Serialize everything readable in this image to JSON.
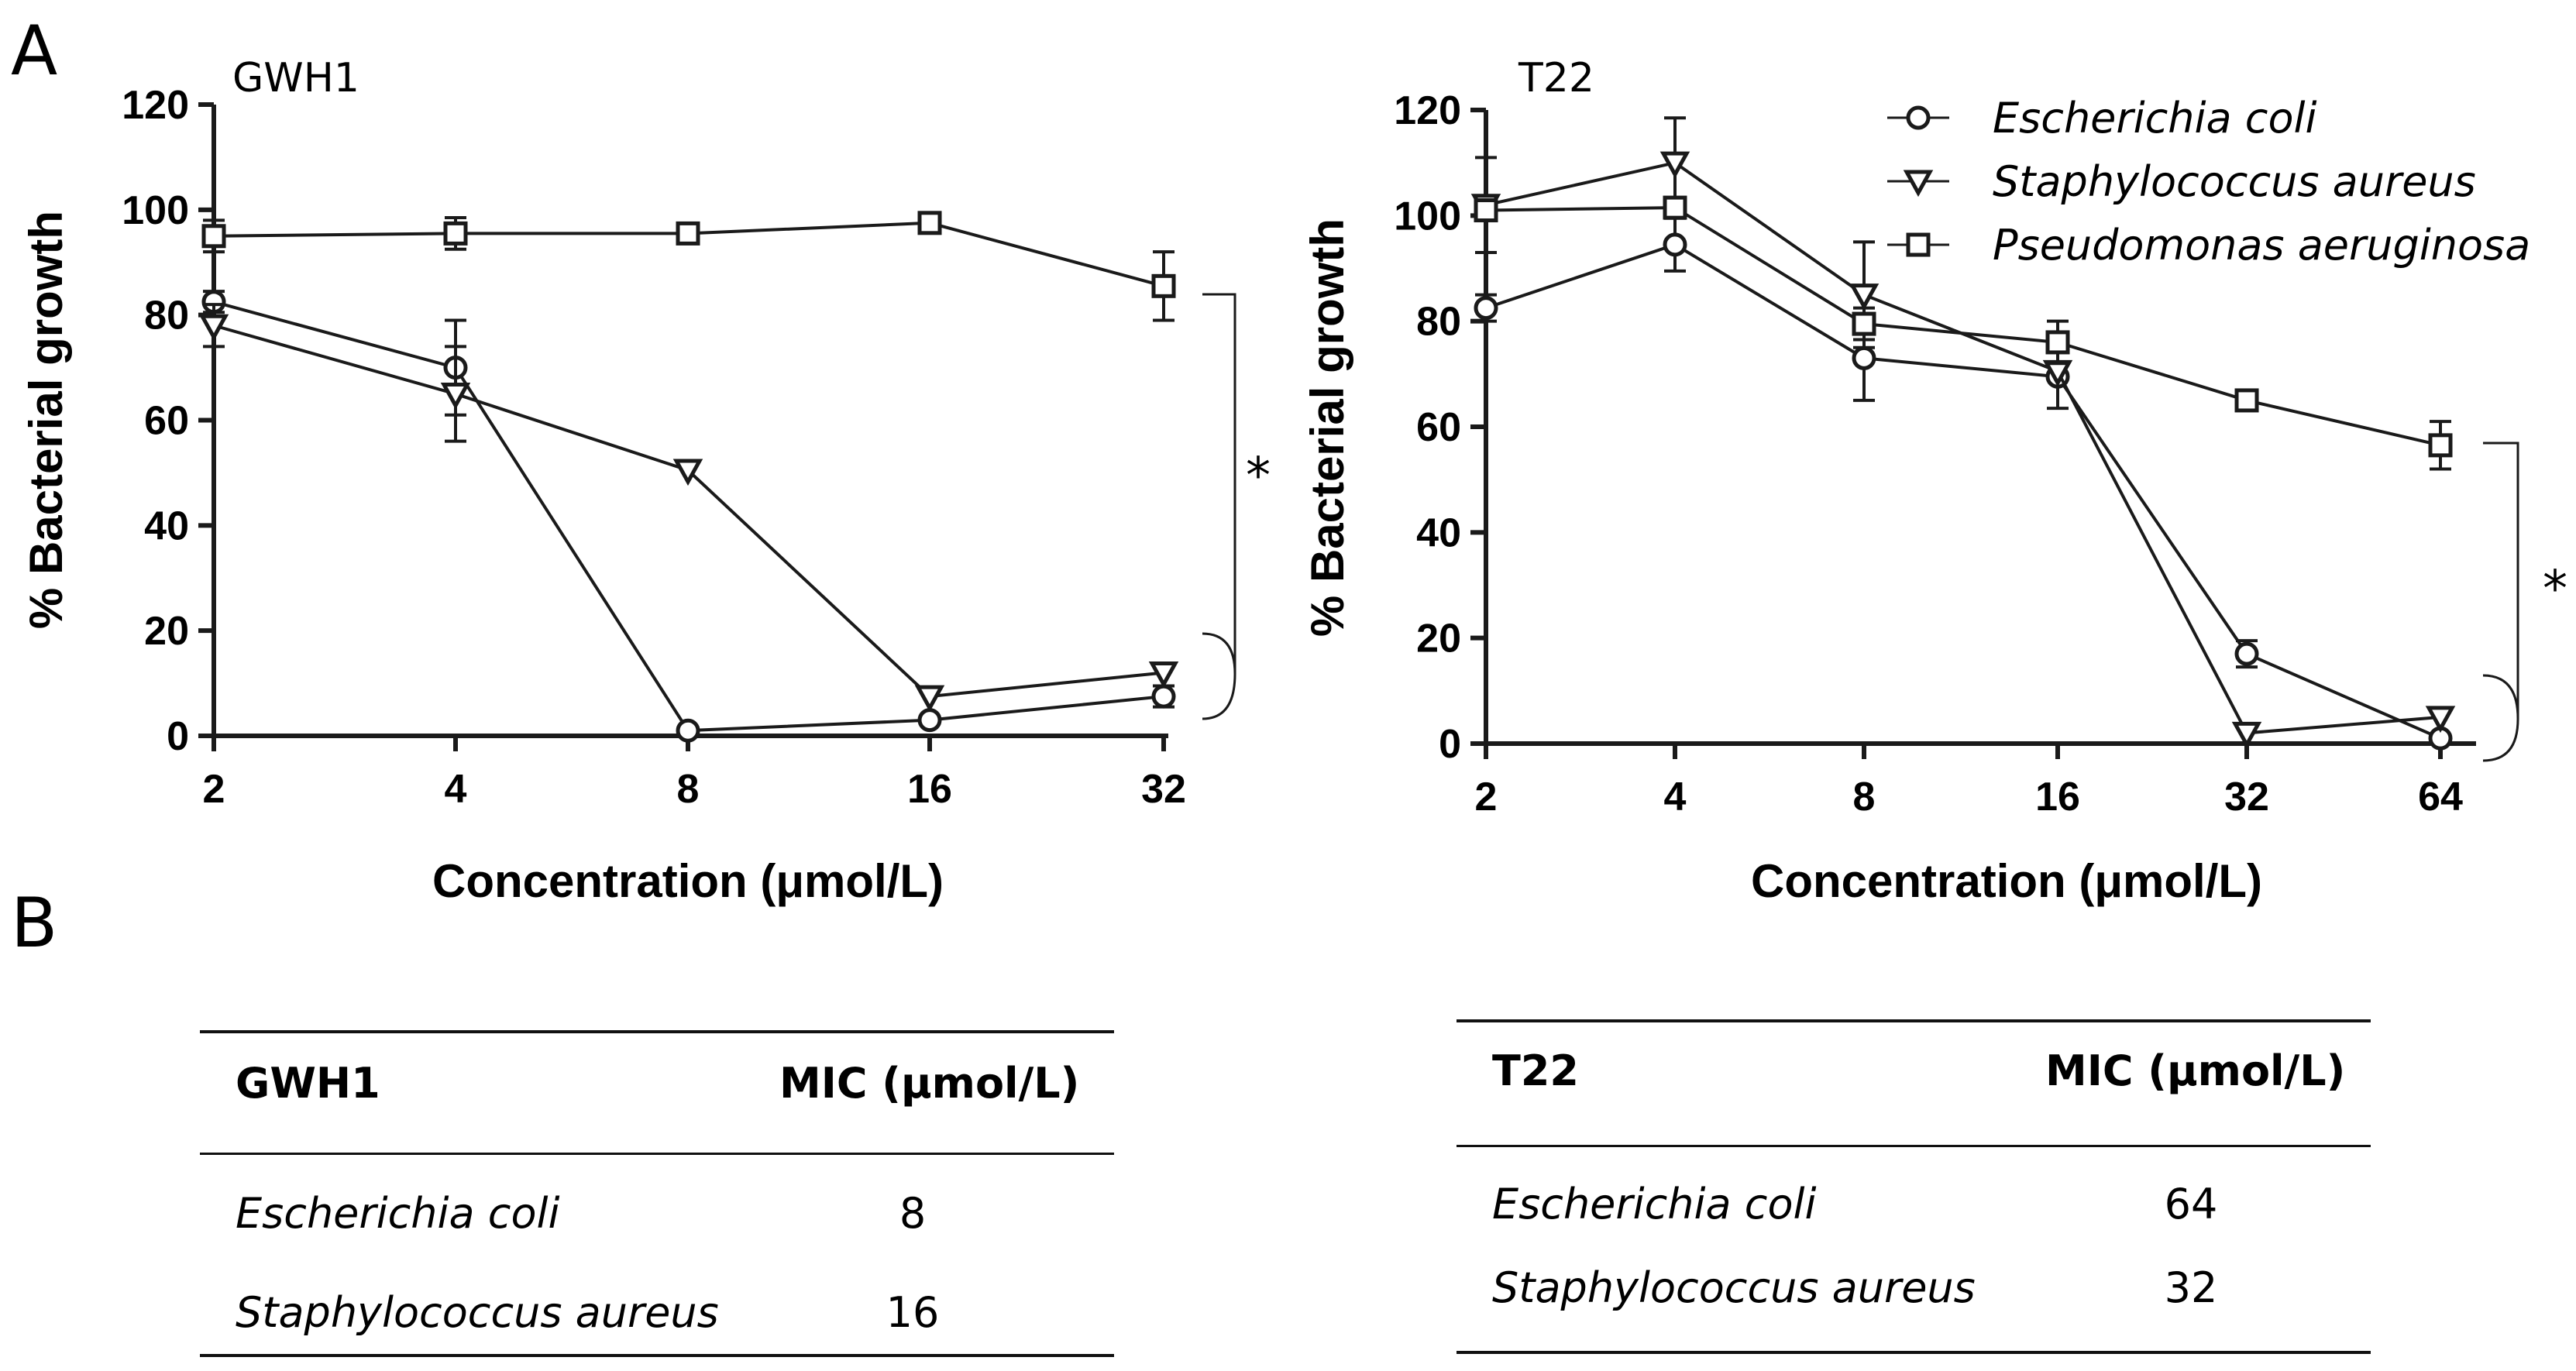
{
  "panels": {
    "a": "A",
    "b": "B"
  },
  "chart_data": [
    {
      "type": "line",
      "title": "GWH1",
      "xlabel": "Concentration (μmol/L)",
      "ylabel": "% Bacterial growth",
      "categories": [
        "2",
        "4",
        "8",
        "16",
        "32"
      ],
      "ylim": [
        0,
        120
      ],
      "yticks": [
        0,
        20,
        40,
        60,
        80,
        100,
        120
      ],
      "series": [
        {
          "name": "Escherichia coli",
          "marker": "circle",
          "values": [
            82.5,
            70,
            1,
            3,
            7.5
          ],
          "errors": [
            2,
            9,
            0,
            0,
            2
          ]
        },
        {
          "name": "Staphylococcus aureus",
          "marker": "triangle-down",
          "values": [
            78,
            65,
            50.5,
            7.5,
            12
          ],
          "errors": [
            4,
            9,
            0,
            0,
            0
          ]
        },
        {
          "name": "Pseudomonas aeruginosa",
          "marker": "square",
          "values": [
            95,
            95.5,
            95.5,
            97.5,
            85.5
          ],
          "errors": [
            3,
            3,
            0,
            0,
            6.5
          ]
        }
      ],
      "annotation": "*"
    },
    {
      "type": "line",
      "title": "T22",
      "xlabel": "Concentration (μmol/L)",
      "ylabel": "% Bacterial growth",
      "categories": [
        "2",
        "4",
        "8",
        "16",
        "32",
        "64"
      ],
      "ylim": [
        0,
        120
      ],
      "yticks": [
        0,
        20,
        40,
        60,
        80,
        100,
        120
      ],
      "series": [
        {
          "name": "Escherichia coli",
          "marker": "circle",
          "values": [
            82.5,
            94.5,
            73,
            69.5,
            17,
            1
          ],
          "errors": [
            2.5,
            5,
            8,
            6,
            2.5,
            0
          ]
        },
        {
          "name": "Staphylococcus aureus",
          "marker": "triangle-down",
          "values": [
            102,
            110,
            85,
            70.5,
            2,
            5
          ],
          "errors": [
            9,
            8.5,
            10,
            0,
            0,
            0
          ]
        },
        {
          "name": "Pseudomonas aeruginosa",
          "marker": "square",
          "values": [
            101,
            101.5,
            79.5,
            76,
            65,
            56.5
          ],
          "errors": [
            0,
            0,
            3,
            4,
            0,
            4.5
          ]
        }
      ],
      "annotation": "*",
      "legend": "top-right"
    }
  ],
  "tables": [
    {
      "header": [
        "GWH1",
        "MIC (μmol/L)"
      ],
      "rows": [
        [
          "Escherichia coli",
          "8"
        ],
        [
          "Staphylococcus aureus",
          "16"
        ]
      ]
    },
    {
      "header": [
        "T22",
        "MIC (μmol/L)"
      ],
      "rows": [
        [
          "Escherichia coli",
          "64"
        ],
        [
          "Staphylococcus aureus",
          "32"
        ]
      ]
    }
  ]
}
